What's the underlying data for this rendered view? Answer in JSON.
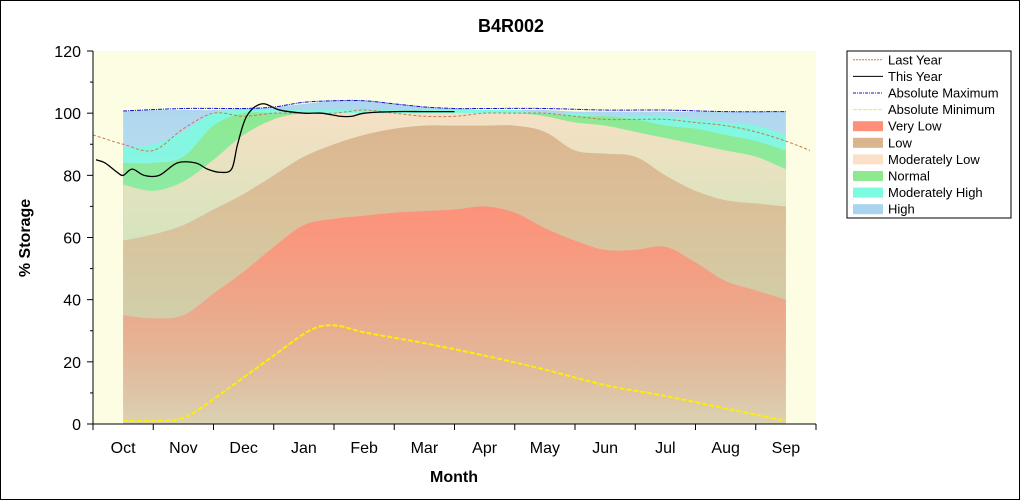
{
  "chart_data": {
    "type": "area",
    "title": "B4R002",
    "xlabel": "Month",
    "ylabel": "% Storage",
    "ylim": [
      0,
      120
    ],
    "yticks": [
      0,
      20,
      40,
      60,
      80,
      100,
      120
    ],
    "x_range": [
      -0.5,
      11.5
    ],
    "months": [
      "Oct",
      "Nov",
      "Dec",
      "Jan",
      "Feb",
      "Mar",
      "Apr",
      "May",
      "Jun",
      "Jul",
      "Aug",
      "Sep"
    ],
    "band_x": [
      0,
      0.5,
      1,
      1.5,
      2,
      2.5,
      3,
      3.5,
      4,
      4.5,
      5,
      5.5,
      6,
      6.5,
      7,
      7.5,
      8,
      8.5,
      9,
      9.5,
      10,
      10.5,
      11
    ],
    "bands": [
      {
        "name": "Very Low",
        "color": "#ff8f78",
        "upper": [
          35,
          34,
          35,
          42,
          49,
          57,
          64,
          66,
          67,
          68,
          68.5,
          69,
          70,
          68,
          63,
          59,
          56,
          56,
          57,
          52,
          46,
          43,
          40
        ]
      },
      {
        "name": "Low",
        "color": "#d9b48d",
        "upper": [
          59,
          61,
          64,
          69,
          74,
          80,
          86,
          90,
          93,
          95,
          96,
          96,
          96,
          96,
          94,
          88,
          87,
          86,
          80,
          75,
          72,
          71,
          70
        ]
      },
      {
        "name": "Moderately Low",
        "color": "#fbe0c8",
        "upper": [
          77,
          75,
          78,
          85,
          93,
          98,
          100,
          100,
          100,
          100,
          100,
          100,
          100,
          100,
          99,
          97,
          96,
          94,
          92,
          90,
          88,
          86,
          82
        ]
      },
      {
        "name": "Normal",
        "color": "#8ee88e",
        "upper": [
          84,
          84,
          86,
          96,
          100,
          100,
          100,
          100,
          100,
          100,
          100,
          100,
          100,
          100,
          100,
          99,
          99,
          98,
          96,
          95,
          93,
          91,
          88
        ]
      },
      {
        "name": "Moderately High",
        "color": "#7dfbe0",
        "upper": [
          89,
          90,
          94,
          100,
          101,
          101,
          101,
          101,
          101,
          101,
          101,
          101,
          101,
          101,
          100,
          100,
          99,
          99,
          99,
          98,
          97,
          96,
          93
        ]
      },
      {
        "name": "High",
        "color": "#a8d4f0",
        "upper": [
          100.5,
          101,
          101,
          101,
          101.5,
          102,
          103,
          104,
          104,
          103,
          102,
          101.5,
          101,
          101,
          101,
          100.5,
          100.5,
          100.5,
          100.5,
          100.5,
          100.5,
          100.5,
          100.5
        ]
      }
    ],
    "lines": [
      {
        "name": "Last Year",
        "color": "#c87a50",
        "dash": "3,2",
        "width": 1,
        "x": [
          -0.5,
          0,
          0.5,
          1,
          1.5,
          2,
          2.5,
          3,
          3.5,
          4,
          4.5,
          5,
          5.5,
          6,
          6.5,
          7,
          7.5,
          8,
          8.5,
          9,
          9.5,
          10,
          10.5,
          11,
          11.4
        ],
        "y": [
          93,
          90,
          88,
          95,
          100,
          99,
          100,
          100,
          100,
          101,
          100,
          99,
          99,
          100,
          100,
          100,
          99,
          98,
          98,
          98,
          97,
          96,
          94,
          91,
          88
        ]
      },
      {
        "name": "This Year",
        "color": "#000000",
        "dash": "",
        "width": 1.3,
        "x": [
          -0.45,
          -0.3,
          -0.1,
          0,
          0.15,
          0.35,
          0.6,
          0.9,
          1.2,
          1.4,
          1.6,
          1.8,
          1.9,
          2.05,
          2.3,
          2.6,
          3.0,
          3.3,
          3.6,
          3.8,
          4.0,
          4.5,
          5.0,
          5.5
        ],
        "y": [
          85,
          84,
          81,
          80,
          82,
          80,
          80,
          84,
          84,
          82,
          81,
          82,
          90,
          99,
          103,
          101,
          100,
          100,
          99,
          99,
          100,
          100.5,
          100.5,
          100.5
        ]
      },
      {
        "name": "Absolute Maximum",
        "color": "#1010d0",
        "dash": "4,1,1,1",
        "width": 1,
        "x": [
          0,
          1,
          2,
          2.5,
          3,
          3.5,
          4,
          4.5,
          5,
          5.5,
          6,
          7,
          8,
          9,
          10,
          11
        ],
        "y": [
          100.7,
          101.5,
          101.5,
          102,
          103.5,
          104,
          104,
          103,
          102,
          101.5,
          101.5,
          101.5,
          101,
          101,
          100.5,
          100.5
        ]
      },
      {
        "name": "Absolute Minimum",
        "color": "#ffee00",
        "dash": "5,2",
        "width": 2,
        "x": [
          0,
          0.5,
          1,
          1.5,
          2,
          2.5,
          3,
          3.3,
          3.6,
          4,
          5,
          6,
          7,
          8,
          9,
          10,
          11
        ],
        "y": [
          1,
          1,
          2,
          8,
          15,
          22,
          29,
          31.5,
          31.5,
          29.5,
          26,
          22,
          17.5,
          12.5,
          9,
          5,
          1
        ]
      }
    ],
    "legend": {
      "placement": "right",
      "entries": [
        {
          "label": "Last Year",
          "kind": "line",
          "color": "#c87a50",
          "dash": "2,1"
        },
        {
          "label": "This Year",
          "kind": "line",
          "color": "#000000",
          "dash": ""
        },
        {
          "label": "Absolute Maximum",
          "kind": "line",
          "color": "#1010d0",
          "dash": "3,1,1,1"
        },
        {
          "label": "Absolute Minimum",
          "kind": "line",
          "color": "#ffee00",
          "dash": "4,1"
        },
        {
          "label": "Very Low",
          "kind": "area",
          "color": "#ff8f78"
        },
        {
          "label": "Low",
          "kind": "area",
          "color": "#d9b48d"
        },
        {
          "label": "Moderately Low",
          "kind": "area",
          "color": "#fbe0c8"
        },
        {
          "label": "Normal",
          "kind": "area",
          "color": "#8ee88e"
        },
        {
          "label": "Moderately High",
          "kind": "area",
          "color": "#7dfbe0"
        },
        {
          "label": "High",
          "kind": "area",
          "color": "#a8d4f0"
        }
      ]
    },
    "colors": {
      "plot_background": "#fdfde4",
      "axis": "#000000"
    },
    "grid": false
  }
}
